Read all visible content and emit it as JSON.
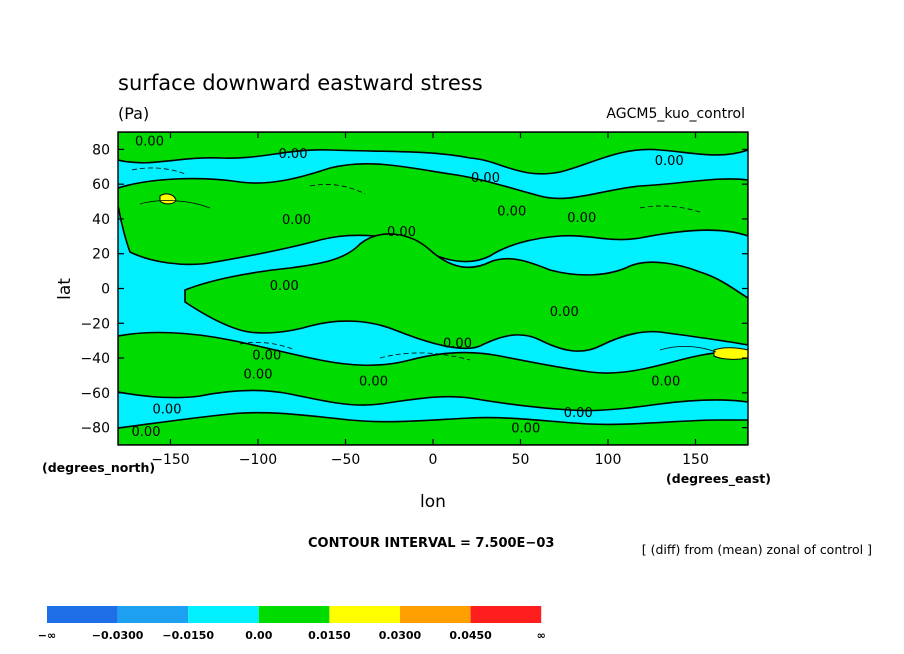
{
  "chart_data": {
    "type": "heatmap",
    "title": "surface downward eastward stress",
    "units": "(Pa)",
    "model_label": "AGCM5_kuo_control",
    "xlabel": "lon",
    "ylabel": "lat",
    "x_unit_label": "(degrees_east)",
    "y_unit_label": "(degrees_north)",
    "xlim": [
      -180,
      180
    ],
    "ylim": [
      -90,
      90
    ],
    "x_ticks": [
      -150,
      -100,
      -50,
      0,
      50,
      100,
      150
    ],
    "x_tick_labels": [
      "−150",
      "−100",
      "−50",
      "0",
      "50",
      "100",
      "150"
    ],
    "y_ticks": [
      80,
      60,
      40,
      20,
      0,
      -20,
      -40,
      -60,
      -80
    ],
    "y_tick_labels": [
      "80",
      "60",
      "40",
      "20",
      "0",
      "−20",
      "−40",
      "−60",
      "−80"
    ],
    "contour_interval_label": "CONTOUR INTERVAL = 7.500E−03",
    "note": "[ (diff) from (mean) zonal of control ]",
    "contour_label_text": "0.00",
    "contour_labels": [
      {
        "lon": -162,
        "lat": 85
      },
      {
        "lon": -80,
        "lat": 78
      },
      {
        "lon": 135,
        "lat": 74
      },
      {
        "lon": 30,
        "lat": 64
      },
      {
        "lon": 45,
        "lat": 45
      },
      {
        "lon": -78,
        "lat": 40
      },
      {
        "lon": 85,
        "lat": 41
      },
      {
        "lon": -18,
        "lat": 33
      },
      {
        "lon": -85,
        "lat": 2
      },
      {
        "lon": 75,
        "lat": -13
      },
      {
        "lon": 14,
        "lat": -31
      },
      {
        "lon": -95,
        "lat": -38
      },
      {
        "lon": -100,
        "lat": -49
      },
      {
        "lon": -34,
        "lat": -53
      },
      {
        "lon": 133,
        "lat": -53
      },
      {
        "lon": -152,
        "lat": -69
      },
      {
        "lon": 83,
        "lat": -71
      },
      {
        "lon": 53,
        "lat": -80
      },
      {
        "lon": -164,
        "lat": -82
      }
    ],
    "color_levels": [
      {
        "label": "−∞",
        "color": "#1e6ee8"
      },
      {
        "label": "−0.0300",
        "color": "#1ea0f0"
      },
      {
        "label": "−0.0150",
        "color": "#00f0ff"
      },
      {
        "label": "0.00",
        "color": "#00dc00"
      },
      {
        "label": "0.0150",
        "color": "#ffff00"
      },
      {
        "label": "0.0300",
        "color": "#ffa000"
      },
      {
        "label": "0.0450",
        "color": "#ff1e1e"
      },
      {
        "label": "∞",
        "color": ""
      }
    ],
    "field_colors": {
      "negative": "#00f0ff",
      "positive": "#00dc00",
      "strong_positive": "#ffff00",
      "contour": "#000000"
    }
  }
}
